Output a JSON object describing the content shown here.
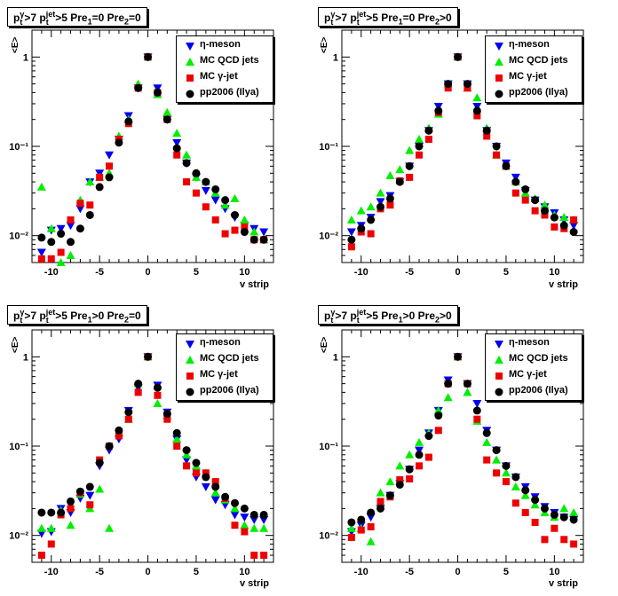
{
  "colors": {
    "eta": "#0000ee",
    "qcd": "#00ee00",
    "gamma": "#ee0000",
    "pp": "#000000"
  },
  "legend": [
    {
      "key": "eta",
      "label": "η-meson",
      "marker": "triangle-down"
    },
    {
      "key": "qcd",
      "label": "MC QCD jets",
      "marker": "triangle-up"
    },
    {
      "key": "gamma",
      "label": "MC γ-jet",
      "marker": "square"
    },
    {
      "key": "pp",
      "label": "pp2006 (Ilya)",
      "marker": "circle"
    }
  ],
  "chart_data": [
    {
      "type": "scatter",
      "title_parts": {
        "a": "p",
        "a_sup": "γ",
        "a_sub": "t",
        "b": ">7  p",
        "b_sup": "jet",
        "b_sub": "t",
        "c": ">5  Pre",
        "c_sub": "1",
        "d": "=0  Pre",
        "d_sub": "2",
        "e": "=0"
      },
      "xlabel": "v strip",
      "ylabel": "<E>",
      "xlim": [
        -12,
        13
      ],
      "ylim": [
        0.005,
        2
      ],
      "yscale": "log",
      "xticks": [
        -10,
        -5,
        0,
        5,
        10
      ],
      "yticks": [
        {
          "v": 0.01,
          "label": "10⁻²"
        },
        {
          "v": 0.1,
          "label": "10⁻¹"
        },
        {
          "v": 1,
          "label": "1"
        }
      ],
      "x": [
        -11,
        -10,
        -9,
        -8,
        -7,
        -6,
        -5,
        -4,
        -3,
        -2,
        -1,
        0,
        1,
        2,
        3,
        4,
        5,
        6,
        7,
        8,
        9,
        10,
        11,
        12
      ],
      "series": [
        {
          "name": "η-meson",
          "key": "eta",
          "values": [
            0.0065,
            0.0115,
            0.012,
            0.013,
            0.02,
            0.04,
            0.05,
            0.08,
            0.12,
            0.22,
            0.45,
            1.0,
            0.45,
            0.2,
            0.11,
            0.065,
            0.045,
            0.032,
            0.025,
            0.02,
            0.016,
            0.013,
            0.012,
            0.011
          ]
        },
        {
          "name": "MC QCD jets",
          "key": "qcd",
          "values": [
            0.035,
            0.012,
            0.005,
            0.006,
            0.025,
            0.04,
            0.045,
            0.05,
            0.13,
            0.2,
            0.5,
            1.0,
            0.38,
            0.24,
            0.14,
            0.08,
            0.045,
            0.04,
            0.03,
            0.022,
            0.026,
            0.015,
            0.011,
            0.009
          ]
        },
        {
          "name": "MC γ-jet",
          "key": "gamma",
          "values": [
            0.0055,
            0.0055,
            0.0065,
            0.015,
            0.023,
            0.022,
            0.045,
            0.06,
            0.12,
            0.18,
            0.45,
            1.0,
            0.4,
            0.2,
            0.08,
            0.04,
            0.03,
            0.021,
            0.015,
            0.0105,
            0.0115,
            0.0125,
            0.009,
            0.009
          ]
        },
        {
          "name": "pp2006 (Ilya)",
          "key": "pp",
          "values": [
            0.0095,
            0.0085,
            0.0105,
            0.0085,
            0.012,
            0.017,
            0.035,
            0.045,
            0.11,
            0.19,
            0.45,
            1.0,
            0.4,
            0.2,
            0.095,
            0.065,
            0.05,
            0.04,
            0.033,
            0.025,
            0.017,
            0.011,
            0.009,
            0.009
          ]
        }
      ]
    },
    {
      "type": "scatter",
      "title_parts": {
        "a": "p",
        "a_sup": "γ",
        "a_sub": "t",
        "b": ">7  p",
        "b_sup": "jet",
        "b_sub": "t",
        "c": ">5  Pre",
        "c_sub": "1",
        "d": "=0  Pre",
        "d_sub": "2",
        "e": ">0"
      },
      "xlabel": "v strip",
      "ylabel": "<E>",
      "xlim": [
        -12,
        13
      ],
      "ylim": [
        0.005,
        2
      ],
      "yscale": "log",
      "xticks": [
        -10,
        -5,
        0,
        5,
        10
      ],
      "yticks": [
        {
          "v": 0.01,
          "label": "10⁻²"
        },
        {
          "v": 0.1,
          "label": "10⁻¹"
        },
        {
          "v": 1,
          "label": "1"
        }
      ],
      "x": [
        -11,
        -10,
        -9,
        -8,
        -7,
        -6,
        -5,
        -4,
        -3,
        -2,
        -1,
        0,
        1,
        2,
        3,
        4,
        5,
        6,
        7,
        8,
        9,
        10,
        11,
        12
      ],
      "series": [
        {
          "name": "η-meson",
          "key": "eta",
          "values": [
            0.011,
            0.013,
            0.016,
            0.024,
            0.028,
            0.04,
            0.06,
            0.1,
            0.15,
            0.28,
            0.5,
            1.0,
            0.5,
            0.28,
            0.15,
            0.1,
            0.065,
            0.045,
            0.032,
            0.025,
            0.021,
            0.018,
            0.015,
            0.013
          ]
        },
        {
          "name": "MC QCD jets",
          "key": "qcd",
          "values": [
            0.015,
            0.019,
            0.021,
            0.03,
            0.047,
            0.055,
            0.09,
            0.12,
            0.16,
            0.23,
            0.5,
            1.0,
            0.45,
            0.35,
            0.16,
            0.08,
            0.06,
            0.04,
            0.03,
            0.026,
            0.022,
            0.017,
            0.016,
            0.015
          ]
        },
        {
          "name": "MC γ-jet",
          "key": "gamma",
          "values": [
            0.0075,
            0.011,
            0.0105,
            0.02,
            0.022,
            0.041,
            0.045,
            0.08,
            0.12,
            0.24,
            0.45,
            1.0,
            0.45,
            0.22,
            0.13,
            0.08,
            0.06,
            0.03,
            0.025,
            0.019,
            0.017,
            0.0125,
            0.012,
            0.015
          ]
        },
        {
          "name": "pp2006 (Ilya)",
          "key": "pp",
          "values": [
            0.009,
            0.012,
            0.015,
            0.021,
            0.026,
            0.04,
            0.06,
            0.1,
            0.15,
            0.25,
            0.5,
            1.0,
            0.5,
            0.25,
            0.15,
            0.1,
            0.06,
            0.04,
            0.033,
            0.025,
            0.019,
            0.016,
            0.013,
            0.011
          ]
        }
      ]
    },
    {
      "type": "scatter",
      "title_parts": {
        "a": "p",
        "a_sup": "γ",
        "a_sub": "t",
        "b": ">7  p",
        "b_sup": "jet",
        "b_sub": "t",
        "c": ">5  Pre",
        "c_sub": "1",
        "d": ">0  Pre",
        "d_sub": "2",
        "e": "=0"
      },
      "xlabel": "v strip",
      "ylabel": "<E>",
      "xlim": [
        -12,
        13
      ],
      "ylim": [
        0.005,
        2
      ],
      "yscale": "log",
      "xticks": [
        -10,
        -5,
        0,
        5,
        10
      ],
      "yticks": [
        {
          "v": 0.01,
          "label": "10⁻²"
        },
        {
          "v": 0.1,
          "label": "10⁻¹"
        },
        {
          "v": 1,
          "label": "1"
        }
      ],
      "x": [
        -11,
        -10,
        -9,
        -8,
        -7,
        -6,
        -5,
        -4,
        -3,
        -2,
        -1,
        0,
        1,
        2,
        3,
        4,
        5,
        6,
        7,
        8,
        9,
        10,
        11,
        12
      ],
      "series": [
        {
          "name": "η-meson",
          "key": "eta",
          "values": [
            0.0105,
            0.011,
            0.02,
            0.018,
            0.026,
            0.028,
            0.06,
            0.09,
            0.12,
            0.25,
            0.45,
            1.0,
            0.48,
            0.24,
            0.12,
            0.07,
            0.045,
            0.035,
            0.025,
            0.022,
            0.017,
            0.016,
            0.015,
            0.015
          ]
        },
        {
          "name": "MC QCD jets",
          "key": "qcd",
          "values": [
            0.012,
            0.012,
            0.019,
            0.013,
            0.029,
            0.02,
            0.033,
            0.012,
            0.14,
            0.2,
            0.5,
            1.0,
            0.3,
            0.22,
            0.12,
            0.08,
            0.06,
            0.05,
            0.03,
            0.025,
            0.02,
            0.013,
            0.012,
            0.012
          ]
        },
        {
          "name": "MC γ-jet",
          "key": "gamma",
          "values": [
            0.006,
            0.008,
            0.017,
            0.02,
            0.03,
            0.022,
            0.07,
            0.1,
            0.13,
            0.2,
            0.4,
            1.0,
            0.37,
            0.2,
            0.1,
            0.06,
            0.05,
            0.05,
            0.04,
            0.026,
            0.013,
            0.011,
            0.006,
            0.006
          ]
        },
        {
          "name": "pp2006 (Ilya)",
          "key": "pp",
          "values": [
            0.018,
            0.018,
            0.018,
            0.024,
            0.031,
            0.035,
            0.065,
            0.1,
            0.15,
            0.24,
            0.5,
            1.0,
            0.45,
            0.23,
            0.14,
            0.09,
            0.065,
            0.045,
            0.035,
            0.027,
            0.023,
            0.02,
            0.017,
            0.017
          ]
        }
      ]
    },
    {
      "type": "scatter",
      "title_parts": {
        "a": "p",
        "a_sup": "γ",
        "a_sub": "t",
        "b": ">7  p",
        "b_sup": "jet",
        "b_sub": "t",
        "c": ">5  Pre",
        "c_sub": "1",
        "d": ">0  Pre",
        "d_sub": "2",
        "e": ">0"
      },
      "xlabel": "v strip",
      "ylabel": "<E>",
      "xlim": [
        -12,
        13
      ],
      "ylim": [
        0.005,
        2
      ],
      "yscale": "log",
      "xticks": [
        -10,
        -5,
        0,
        5,
        10
      ],
      "yticks": [
        {
          "v": 0.01,
          "label": "10⁻²"
        },
        {
          "v": 0.1,
          "label": "10⁻¹"
        },
        {
          "v": 1,
          "label": "1"
        }
      ],
      "x": [
        -11,
        -10,
        -9,
        -8,
        -7,
        -6,
        -5,
        -4,
        -3,
        -2,
        -1,
        0,
        1,
        2,
        3,
        4,
        5,
        6,
        7,
        8,
        9,
        10,
        11,
        12
      ],
      "series": [
        {
          "name": "η-meson",
          "key": "eta",
          "values": [
            0.011,
            0.013,
            0.016,
            0.02,
            0.028,
            0.038,
            0.055,
            0.09,
            0.14,
            0.25,
            0.55,
            1.0,
            0.5,
            0.3,
            0.15,
            0.09,
            0.06,
            0.045,
            0.035,
            0.027,
            0.021,
            0.018,
            0.016,
            0.015
          ]
        },
        {
          "name": "MC QCD jets",
          "key": "qcd",
          "values": [
            0.012,
            0.012,
            0.0085,
            0.03,
            0.04,
            0.06,
            0.08,
            0.11,
            0.14,
            0.25,
            0.35,
            1.0,
            0.4,
            0.19,
            0.11,
            0.07,
            0.05,
            0.035,
            0.028,
            0.022,
            0.018,
            0.016,
            0.02,
            0.018
          ]
        },
        {
          "name": "MC γ-jet",
          "key": "gamma",
          "values": [
            0.0095,
            0.0115,
            0.0125,
            0.024,
            0.027,
            0.042,
            0.043,
            0.06,
            0.075,
            0.15,
            0.5,
            1.0,
            0.5,
            0.2,
            0.07,
            0.05,
            0.04,
            0.023,
            0.018,
            0.014,
            0.009,
            0.012,
            0.009,
            0.008
          ]
        },
        {
          "name": "pp2006 (Ilya)",
          "key": "pp",
          "values": [
            0.014,
            0.015,
            0.018,
            0.02,
            0.028,
            0.037,
            0.055,
            0.08,
            0.13,
            0.22,
            0.5,
            1.0,
            0.5,
            0.25,
            0.14,
            0.09,
            0.06,
            0.045,
            0.032,
            0.025,
            0.02,
            0.017,
            0.016,
            0.015
          ]
        }
      ]
    }
  ]
}
